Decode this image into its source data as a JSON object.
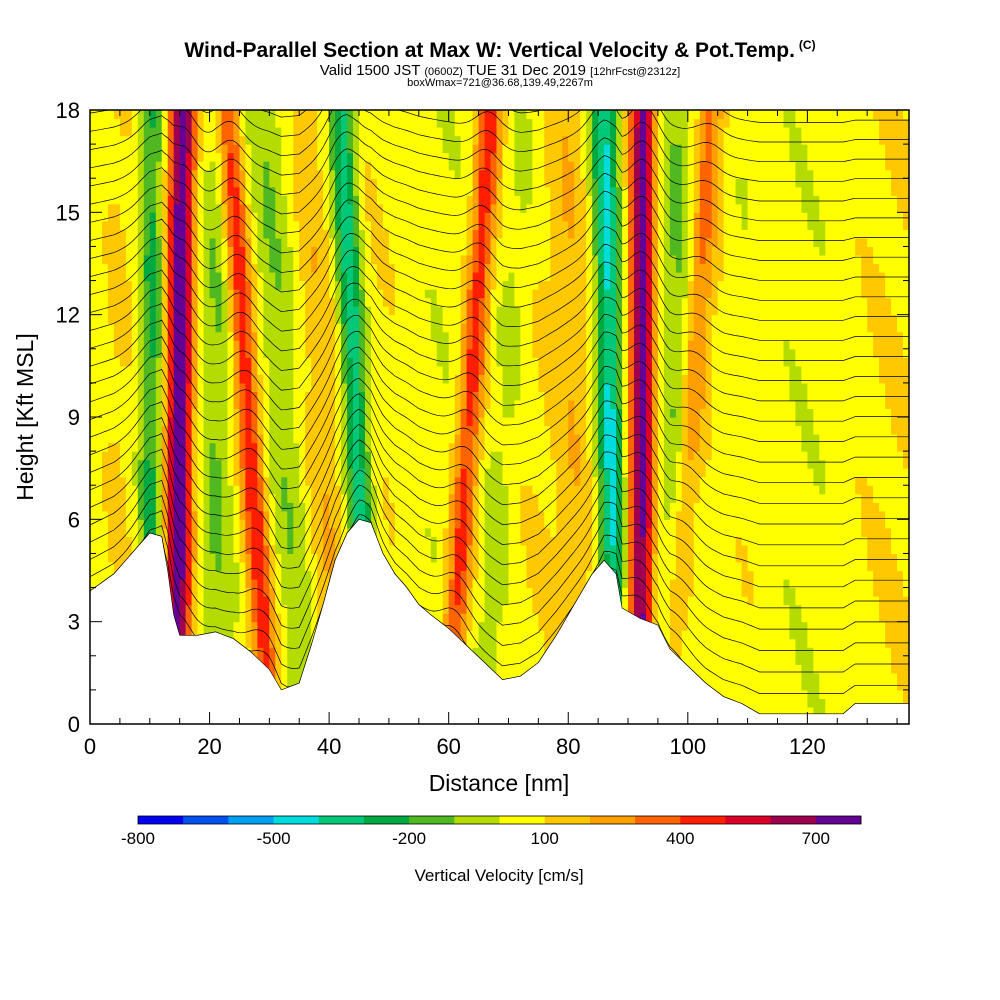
{
  "titles": {
    "main": "Wind-Parallel Section at Max W: Vertical Velocity & Pot.Temp.",
    "copyright": "(C)",
    "valid_prefix": "Valid 1500 JST",
    "valid_utc": "(0600Z)",
    "valid_date": "TUE 31 Dec 2019",
    "forecast": "[12hrFcst@2312z]",
    "box": "boxWmax=721@36.68,139.49,2267m"
  },
  "chart_data": {
    "type": "heatmap",
    "xlabel": "Distance [nm]",
    "ylabel": "Height [Kft MSL]",
    "xlim": [
      0,
      137
    ],
    "ylim": [
      0,
      18
    ],
    "x_ticks": [
      0,
      20,
      40,
      60,
      80,
      100,
      120
    ],
    "y_ticks": [
      0,
      3,
      6,
      9,
      12,
      15,
      18
    ],
    "colorbar": {
      "label": "Vertical Velocity [cm/s]",
      "tick_labels": [
        -800,
        -500,
        -200,
        100,
        400,
        700
      ],
      "levels": [
        -800,
        -700,
        -600,
        -500,
        -400,
        -300,
        -200,
        -100,
        0,
        100,
        200,
        300,
        400,
        500,
        600,
        700,
        800
      ],
      "colors": [
        "#0000f0",
        "#0050f0",
        "#00a0f0",
        "#00dcdc",
        "#00c878",
        "#00aa40",
        "#50b820",
        "#b4dc00",
        "#ffff00",
        "#ffc800",
        "#ffa000",
        "#ff6400",
        "#ff1e00",
        "#dc0028",
        "#a00050",
        "#640096"
      ]
    },
    "terrain_kft": [
      [
        0,
        3.9
      ],
      [
        4,
        4.4
      ],
      [
        8,
        5.2
      ],
      [
        10,
        5.6
      ],
      [
        12,
        5.5
      ],
      [
        13,
        4.5
      ],
      [
        14,
        3.2
      ],
      [
        15,
        2.6
      ],
      [
        18,
        2.6
      ],
      [
        21,
        2.7
      ],
      [
        24,
        2.5
      ],
      [
        27,
        2.1
      ],
      [
        30,
        1.6
      ],
      [
        32,
        1.0
      ],
      [
        35,
        1.2
      ],
      [
        37,
        2.3
      ],
      [
        39,
        3.5
      ],
      [
        41,
        4.8
      ],
      [
        43,
        5.6
      ],
      [
        45,
        6.0
      ],
      [
        47,
        5.9
      ],
      [
        49,
        5.0
      ],
      [
        51,
        4.4
      ],
      [
        53,
        4.0
      ],
      [
        55,
        3.5
      ],
      [
        57,
        3.2
      ],
      [
        60,
        2.8
      ],
      [
        63,
        2.3
      ],
      [
        66,
        1.8
      ],
      [
        69,
        1.3
      ],
      [
        72,
        1.4
      ],
      [
        75,
        1.8
      ],
      [
        78,
        2.6
      ],
      [
        81,
        3.5
      ],
      [
        84,
        4.4
      ],
      [
        86,
        4.8
      ],
      [
        88,
        4.4
      ],
      [
        89,
        3.4
      ],
      [
        90,
        3.3
      ],
      [
        92,
        3.1
      ],
      [
        95,
        2.9
      ],
      [
        97,
        2.2
      ],
      [
        100,
        1.7
      ],
      [
        103,
        1.2
      ],
      [
        106,
        0.8
      ],
      [
        109,
        0.6
      ],
      [
        112,
        0.3
      ],
      [
        120,
        0.3
      ],
      [
        126,
        0.3
      ],
      [
        128,
        0.6
      ],
      [
        137,
        0.6
      ]
    ],
    "updraft_bands": [
      {
        "x_base": 14.5,
        "x_top": 15.5,
        "peak_cm_s": 700
      },
      {
        "x_base": 30,
        "x_top": 23,
        "peak_cm_s": 450
      },
      {
        "x_base": 60,
        "x_top": 67,
        "peak_cm_s": 400
      },
      {
        "x_base": 92,
        "x_top": 92.5,
        "peak_cm_s": 721
      },
      {
        "x_base": 97,
        "x_top": 104,
        "peak_cm_s": 250
      }
    ],
    "downdraft_bands": [
      {
        "x_base": 10,
        "x_top": 10.5,
        "peak_cm_s": -300
      },
      {
        "x_base": 47,
        "x_top": 42,
        "peak_cm_s": -450
      },
      {
        "x_base": 88,
        "x_top": 86,
        "peak_cm_s": -450
      }
    ]
  }
}
